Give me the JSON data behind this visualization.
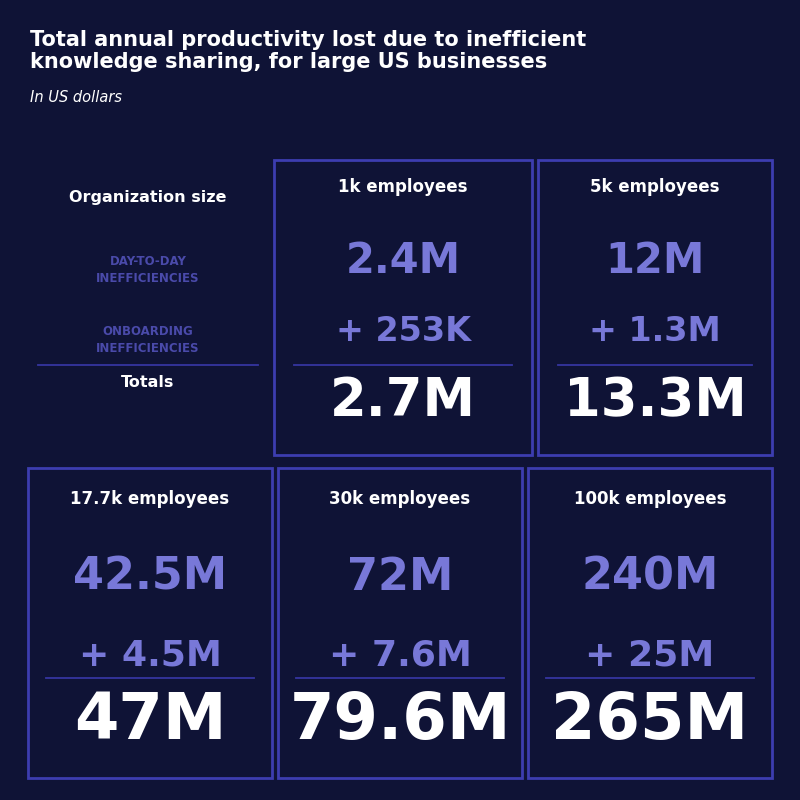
{
  "title_line1": "Total annual productivity lost due to inefficient",
  "title_line2": "knowledge sharing, for large US businesses",
  "subtitle": "In US dollars",
  "bg_color": "#0f1336",
  "card_bg_color": "#0f1336",
  "card_border_color": "#3d3db0",
  "white": "#ffffff",
  "purple": "#7878d8",
  "label_purple": "#4a4aaa",
  "divider_color": "#3535a0",
  "row1": {
    "col0": {
      "header": "Organization size",
      "label1": "DAY-TO-DAY\nINEFFICIENCIES",
      "label2": "ONBOARDING\nINEFFICIENCIES",
      "footer": "Totals"
    },
    "col1": {
      "header": "1k employees",
      "val1": "2.4M",
      "val2": "+ 253K",
      "total": "2.7M"
    },
    "col2": {
      "header": "5k employees",
      "val1": "12M",
      "val2": "+ 1.3M",
      "total": "13.3M"
    }
  },
  "row2": {
    "col0": {
      "header": "17.7k employees",
      "val1": "42.5M",
      "val2": "+ 4.5M",
      "total": "47M"
    },
    "col1": {
      "header": "30k employees",
      "val1": "72M",
      "val2": "+ 7.6M",
      "total": "79.6M"
    },
    "col2": {
      "header": "100k employees",
      "val1": "240M",
      "val2": "+ 25M",
      "total": "265M"
    }
  }
}
